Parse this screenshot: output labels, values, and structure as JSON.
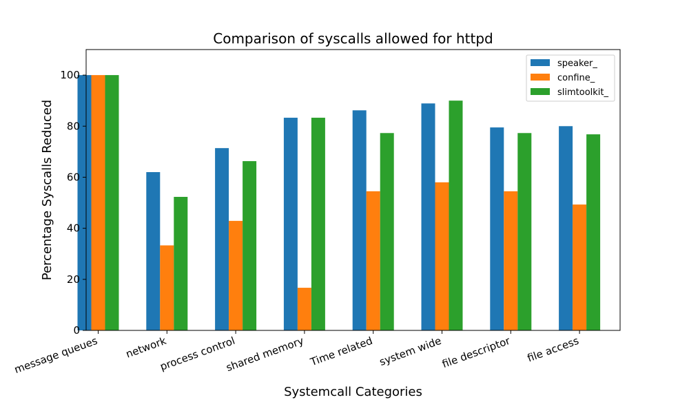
{
  "chart_data": {
    "type": "bar",
    "title": "Comparison of syscalls allowed for httpd",
    "xlabel": "Systemcall Categories",
    "ylabel": "Percentage Syscalls Reduced",
    "ylim": [
      0,
      110
    ],
    "yticks": [
      0,
      20,
      40,
      60,
      80,
      100
    ],
    "categories": [
      "message queues",
      "network",
      "process control",
      "shared memory",
      "Time related",
      "system wide",
      "file descriptor",
      "file access"
    ],
    "series": [
      {
        "name": "speaker_",
        "color": "#1f77b4",
        "values": [
          100,
          62,
          71.4,
          83.3,
          86.2,
          88.9,
          79.5,
          80
        ]
      },
      {
        "name": "confine_",
        "color": "#ff7f0e",
        "values": [
          100,
          33.3,
          42.9,
          16.7,
          54.5,
          58,
          54.5,
          49.3
        ]
      },
      {
        "name": "slimtoolkit_",
        "color": "#2ca02c",
        "values": [
          100,
          52.3,
          66.3,
          83.3,
          77.3,
          90,
          77.3,
          76.8
        ]
      }
    ],
    "grid": false,
    "legend": "top-right"
  }
}
